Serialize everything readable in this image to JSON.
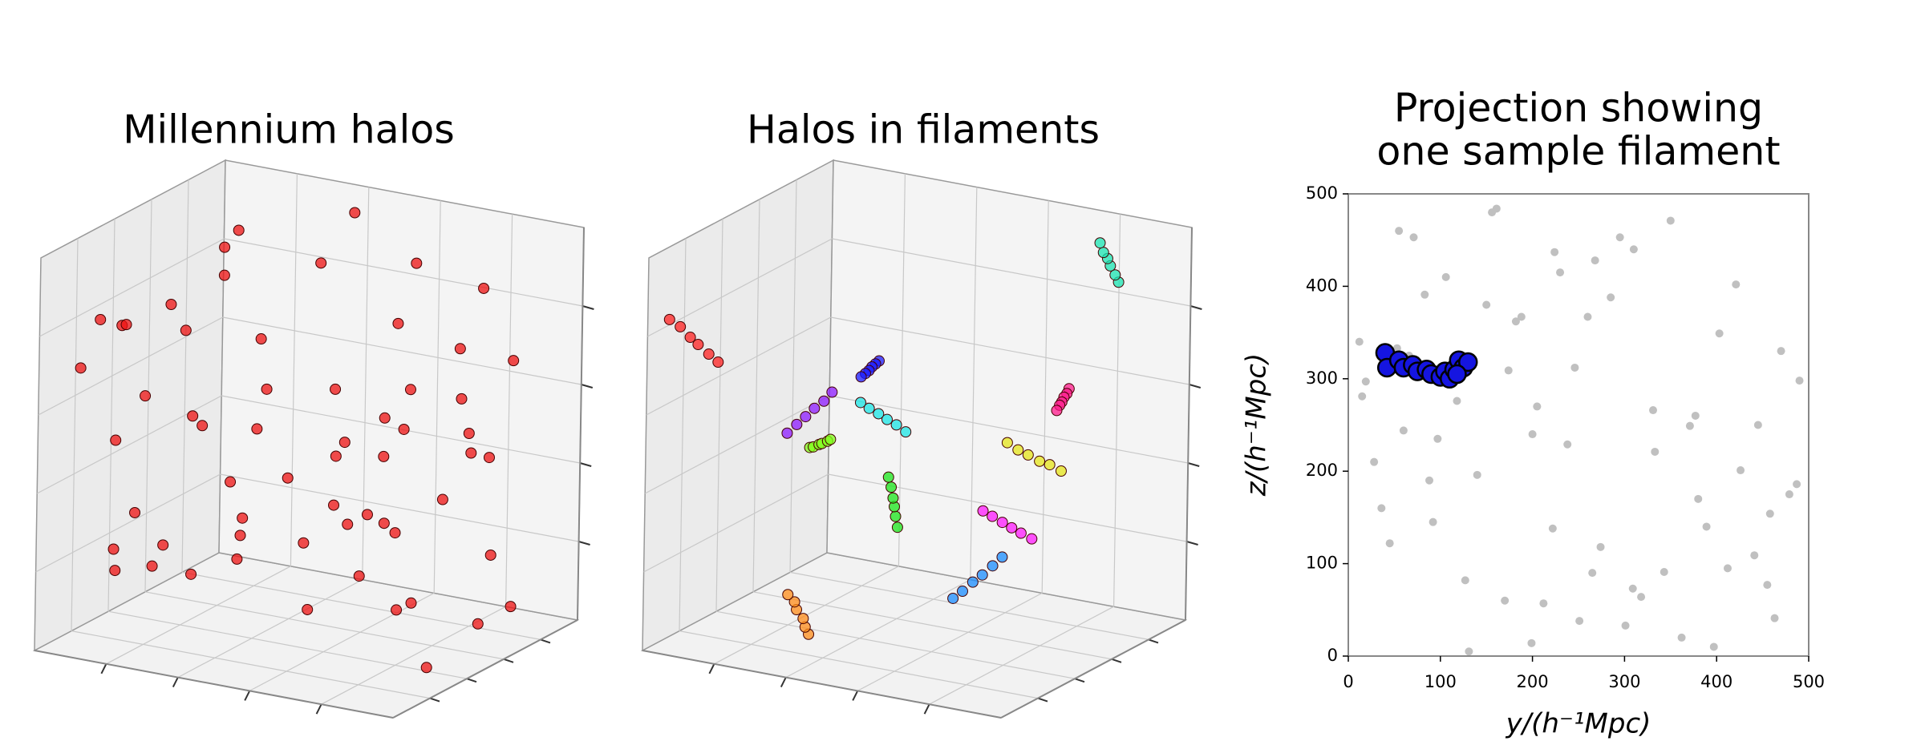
{
  "chart_data": [
    {
      "type": "scatter3d",
      "title": "Millennium halos",
      "color": "#ee1111",
      "x": [
        12,
        455,
        230,
        88,
        377,
        301,
        156,
        45,
        490,
        260,
        199,
        333,
        71,
        412,
        118,
        285,
        36,
        463,
        174,
        350,
        222,
        97,
        318,
        403,
        140,
        268,
        15,
        441,
        188,
        362,
        60,
        295,
        479,
        127,
        246,
        389,
        83,
        212,
        331,
        426,
        161,
        274,
        53,
        397,
        238,
        106,
        458,
        19,
        309,
        182,
        371,
        131,
        224,
        487,
        66,
        343,
        205,
        421,
        92,
        251
      ],
      "y": [
        340,
        77,
        415,
        190,
        260,
        33,
        480,
        122,
        298,
        367,
        14,
        221,
        453,
        95,
        276,
        388,
        160,
        41,
        309,
        471,
        138,
        235,
        64,
        349,
        196,
        428,
        281,
        109,
        367,
        20,
        244,
        453,
        175,
        82,
        312,
        140,
        391,
        57,
        266,
        201,
        484,
        118,
        333,
        10,
        229,
        410,
        154,
        297,
        73,
        362,
        249,
        5,
        437,
        186,
        325,
        91,
        270,
        402,
        145,
        38
      ],
      "z": [
        55,
        410,
        190,
        305,
        470,
        123,
        260,
        380,
        35,
        215,
        445,
        90,
        330,
        167,
        490,
        273,
        18,
        356,
        141,
        402,
        233,
        71,
        314,
        465,
        186,
        28,
        259,
        397,
        112,
        343,
        207,
        480,
        62,
        291,
        151,
        425,
        8,
        368,
        245,
        97,
        322,
        178,
        455,
        283,
        40,
        217,
        384,
        130,
        301,
        16,
        438,
        199,
        355,
        85,
        270,
        412,
        144,
        60,
        330,
        248
      ],
      "xlim": [
        0,
        500
      ],
      "ylim": [
        0,
        500
      ],
      "zlim": [
        0,
        500
      ],
      "xticks": [
        100,
        200,
        300,
        400
      ],
      "yticks": [
        100,
        200,
        300,
        400
      ],
      "zticks": [
        100,
        200,
        300,
        400
      ],
      "grid": true
    },
    {
      "type": "scatter3d",
      "title": "Halos in filaments",
      "series": [
        {
          "color": "#ff2020",
          "x": [
            480,
            470,
            462,
            455,
            445,
            438
          ],
          "y": [
            20,
            30,
            42,
            50,
            60,
            72
          ],
          "z": [
            420,
            410,
            395,
            385,
            372,
            360
          ]
        },
        {
          "color": "#ff8c1a",
          "x": [
            300,
            310,
            318,
            330,
            338,
            350
          ],
          "y": [
            60,
            70,
            80,
            85,
            95,
            100
          ],
          "z": [
            40,
            45,
            52,
            60,
            66,
            72
          ]
        },
        {
          "color": "#e6e619",
          "x": [
            150,
            140,
            132,
            120,
            112,
            100
          ],
          "y": [
            300,
            310,
            322,
            330,
            342,
            350
          ],
          "z": [
            250,
            240,
            232,
            224,
            218,
            210
          ]
        },
        {
          "color": "#80ff1a",
          "x": [
            450,
            440,
            428,
            418,
            406,
            396
          ],
          "y": [
            350,
            340,
            332,
            320,
            312,
            300
          ],
          "z": [
            180,
            185,
            192,
            198,
            205,
            212
          ]
        },
        {
          "color": "#19e619",
          "x": [
            250,
            258,
            266,
            272,
            280,
            290
          ],
          "y": [
            200,
            210,
            222,
            230,
            240,
            252
          ],
          "z": [
            150,
            160,
            168,
            176,
            186,
            194
          ]
        },
        {
          "color": "#19e6b3",
          "x": [
            60,
            70,
            82,
            90,
            100,
            110
          ],
          "y": [
            420,
            430,
            440,
            448,
            456,
            466
          ],
          "z": [
            440,
            445,
            452,
            458,
            462,
            470
          ]
        },
        {
          "color": "#19e6e6",
          "x": [
            200,
            208,
            216,
            224,
            232,
            240
          ],
          "y": [
            120,
            110,
            100,
            92,
            82,
            74
          ],
          "z": [
            300,
            310,
            318,
            326,
            334,
            342
          ]
        },
        {
          "color": "#1a8cff",
          "x": [
            100,
            92,
            84,
            76,
            68,
            60
          ],
          "y": [
            60,
            70,
            82,
            92,
            104,
            114
          ],
          "z": [
            120,
            128,
            138,
            146,
            156,
            166
          ]
        },
        {
          "color": "#1a1aff",
          "x": [
            320,
            330,
            340,
            348,
            358,
            368
          ],
          "y": [
            280,
            290,
            300,
            308,
            318,
            326
          ],
          "z": [
            330,
            322,
            314,
            306,
            298,
            290
          ]
        },
        {
          "color": "#8c1aff",
          "x": [
            380,
            372,
            366,
            358,
            350,
            344
          ],
          "y": [
            150,
            160,
            172,
            180,
            190,
            200
          ],
          "z": [
            260,
            270,
            278,
            288,
            296,
            306
          ]
        },
        {
          "color": "#ff19ff",
          "x": [
            180,
            190,
            198,
            206,
            216,
            224
          ],
          "y": [
            430,
            420,
            410,
            400,
            392,
            382
          ],
          "z": [
            90,
            98,
            106,
            114,
            122,
            130
          ]
        },
        {
          "color": "#ff1a8c",
          "x": [
            40,
            48,
            56,
            64,
            72,
            80
          ],
          "y": [
            250,
            260,
            268,
            278,
            288,
            296
          ],
          "z": [
            350,
            340,
            332,
            322,
            314,
            304
          ]
        }
      ],
      "xlim": [
        0,
        500
      ],
      "ylim": [
        0,
        500
      ],
      "zlim": [
        0,
        500
      ],
      "xticks": [
        100,
        200,
        300,
        400
      ],
      "yticks": [
        100,
        200,
        300,
        400
      ],
      "zticks": [
        100,
        200,
        300,
        400
      ],
      "grid": true
    },
    {
      "type": "scatter",
      "title": [
        "Projection showing",
        "one sample filament"
      ],
      "xlabel": "y/(h⁻¹Mpc)",
      "ylabel": "z/(h⁻¹Mpc)",
      "series": [
        {
          "color": "#c0c0c0",
          "x": [
            12,
            455,
            230,
            88,
            377,
            301,
            156,
            45,
            490,
            260,
            199,
            333,
            71,
            412,
            118,
            285,
            36,
            463,
            174,
            350,
            222,
            97,
            318,
            403,
            140,
            268,
            15,
            441,
            188,
            362,
            60,
            295,
            479,
            127,
            246,
            389,
            83,
            212,
            331,
            426,
            161,
            274,
            53,
            397,
            238,
            106,
            458,
            19,
            309,
            182,
            371,
            131,
            224,
            487,
            66,
            343,
            205,
            421,
            92,
            251,
            28,
            170,
            310,
            445,
            380,
            150,
            265,
            470,
            55,
            200
          ],
          "y": [
            340,
            77,
            415,
            190,
            260,
            33,
            480,
            122,
            298,
            367,
            14,
            221,
            453,
            95,
            276,
            388,
            160,
            41,
            309,
            471,
            138,
            235,
            64,
            349,
            196,
            428,
            281,
            109,
            367,
            20,
            244,
            453,
            175,
            82,
            312,
            140,
            391,
            57,
            266,
            201,
            484,
            118,
            333,
            10,
            229,
            410,
            154,
            297,
            73,
            362,
            249,
            5,
            437,
            186,
            325,
            91,
            270,
            402,
            145,
            38,
            210,
            60,
            440,
            250,
            170,
            380,
            90,
            330,
            460,
            240
          ]
        },
        {
          "color": "#1515e0",
          "x": [
            40,
            42,
            55,
            60,
            70,
            75,
            85,
            90,
            100,
            105,
            110,
            115,
            120,
            125,
            130,
            118
          ],
          "y": [
            328,
            312,
            320,
            312,
            315,
            308,
            310,
            305,
            302,
            308,
            300,
            310,
            320,
            312,
            318,
            305
          ]
        }
      ],
      "xlim": [
        0,
        500
      ],
      "ylim": [
        0,
        500
      ],
      "xticks": [
        0,
        100,
        200,
        300,
        400,
        500
      ],
      "yticks": [
        0,
        100,
        200,
        300,
        400,
        500
      ]
    }
  ]
}
